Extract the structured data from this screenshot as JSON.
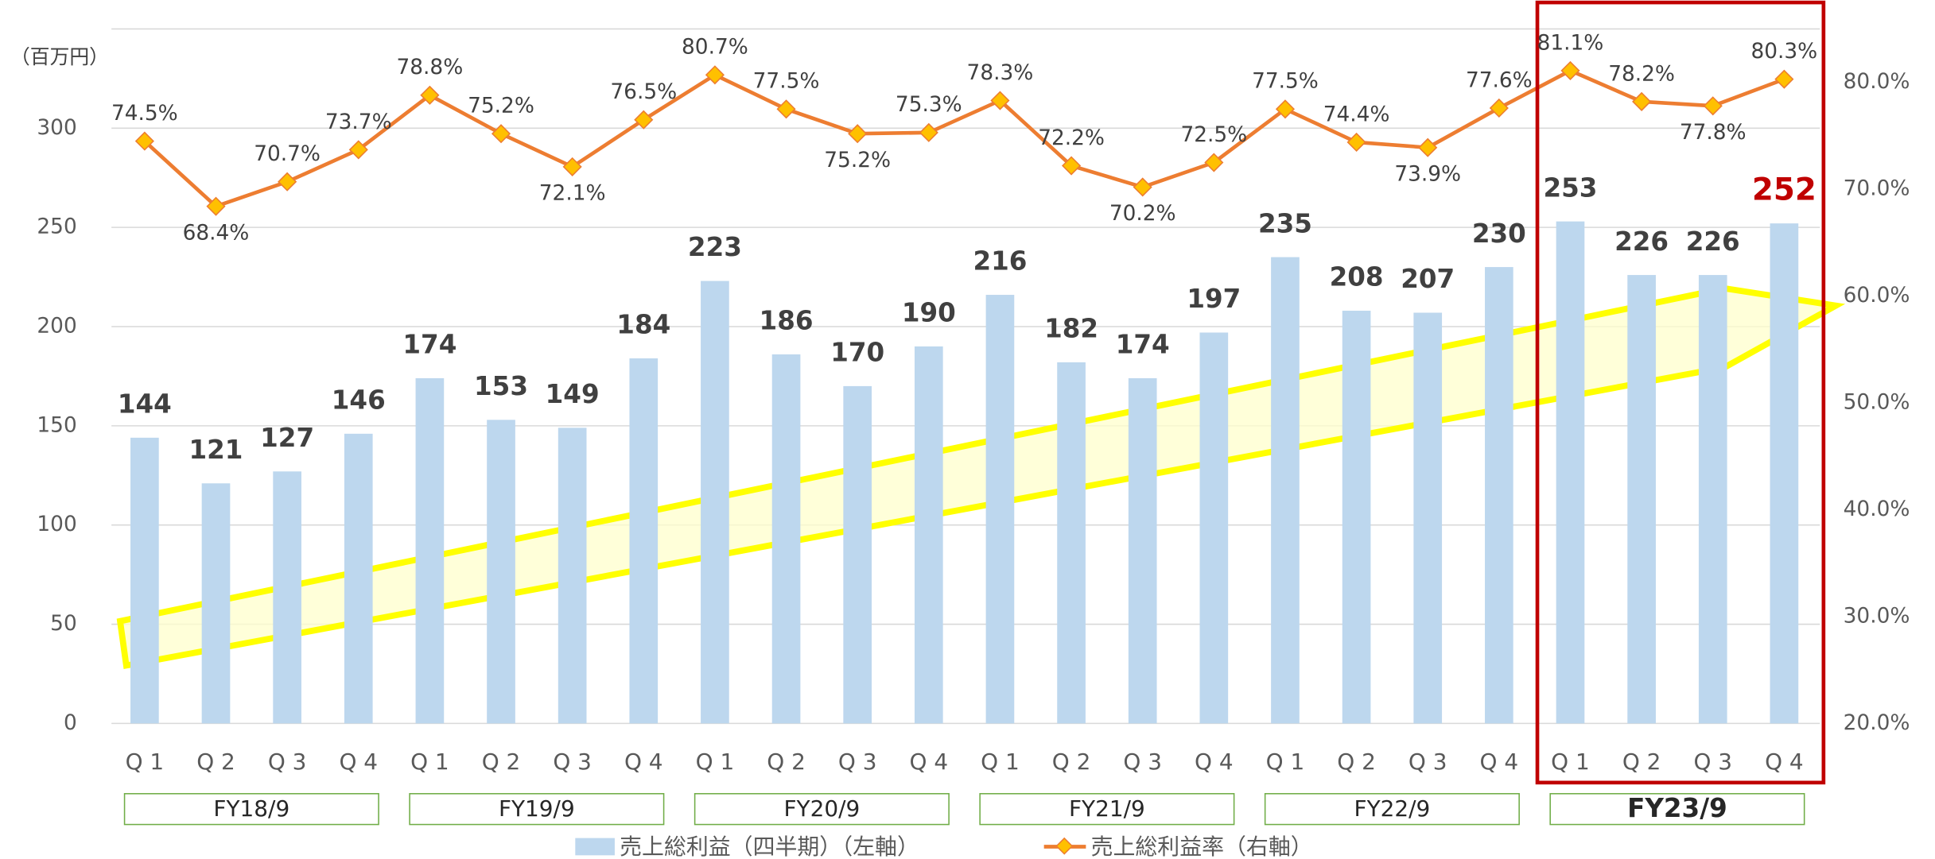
{
  "chart_data": {
    "type": "bar_line",
    "y_axis_label": "（百万円）",
    "categories": [
      "Q 1",
      "Q 2",
      "Q 3",
      "Q 4",
      "Q 1",
      "Q 2",
      "Q 3",
      "Q 4",
      "Q 1",
      "Q 2",
      "Q 3",
      "Q 4",
      "Q 1",
      "Q 2",
      "Q 3",
      "Q 4",
      "Q 1",
      "Q 2",
      "Q 3",
      "Q 4",
      "Q 1",
      "Q 2",
      "Q 3",
      "Q 4"
    ],
    "groups": [
      "FY18/9",
      "FY19/9",
      "FY20/9",
      "FY21/9",
      "FY22/9",
      "FY23/9"
    ],
    "series": [
      {
        "name": "売上総利益（四半期）（左軸）",
        "color": "#bdd7ee",
        "values": [
          144,
          121,
          127,
          146,
          174,
          153,
          149,
          184,
          223,
          186,
          170,
          190,
          216,
          182,
          174,
          197,
          235,
          208,
          207,
          230,
          253,
          226,
          226,
          252
        ]
      },
      {
        "name": "売上総利益率（右軸）",
        "color": "#ed7d31",
        "axis": "y2",
        "values": [
          74.5,
          68.4,
          70.7,
          73.7,
          78.8,
          75.2,
          72.1,
          76.5,
          80.7,
          77.5,
          75.2,
          75.3,
          78.3,
          72.2,
          70.2,
          72.5,
          77.5,
          74.4,
          73.9,
          77.6,
          81.1,
          78.2,
          77.8,
          80.3
        ],
        "value_labels": [
          "74.5%",
          "68.4%",
          "70.7%",
          "73.7%",
          "78.8%",
          "75.2%",
          "72.1%",
          "76.5%",
          "80.7%",
          "77.5%",
          "75.2%",
          "75.3%",
          "78.3%",
          "72.2%",
          "70.2%",
          "72.5%",
          "77.5%",
          "74.4%",
          "73.9%",
          "77.6%",
          "81.1%",
          "78.2%",
          "77.8%",
          "80.3%"
        ]
      }
    ],
    "ylim": [
      0,
      350
    ],
    "yticks": [
      0,
      50,
      100,
      150,
      200,
      250,
      300
    ],
    "y2lim": [
      20,
      85
    ],
    "y2ticks": [
      {
        "value": 20,
        "label": "20.0%"
      },
      {
        "value": 30,
        "label": "30.0%"
      },
      {
        "value": 40,
        "label": "40.0%"
      },
      {
        "value": 50,
        "label": "50.0%"
      },
      {
        "value": 60,
        "label": "60.0%"
      },
      {
        "value": 70,
        "label": "70.0%"
      },
      {
        "value": 80,
        "label": "80.0%"
      }
    ],
    "grid": true
  }
}
